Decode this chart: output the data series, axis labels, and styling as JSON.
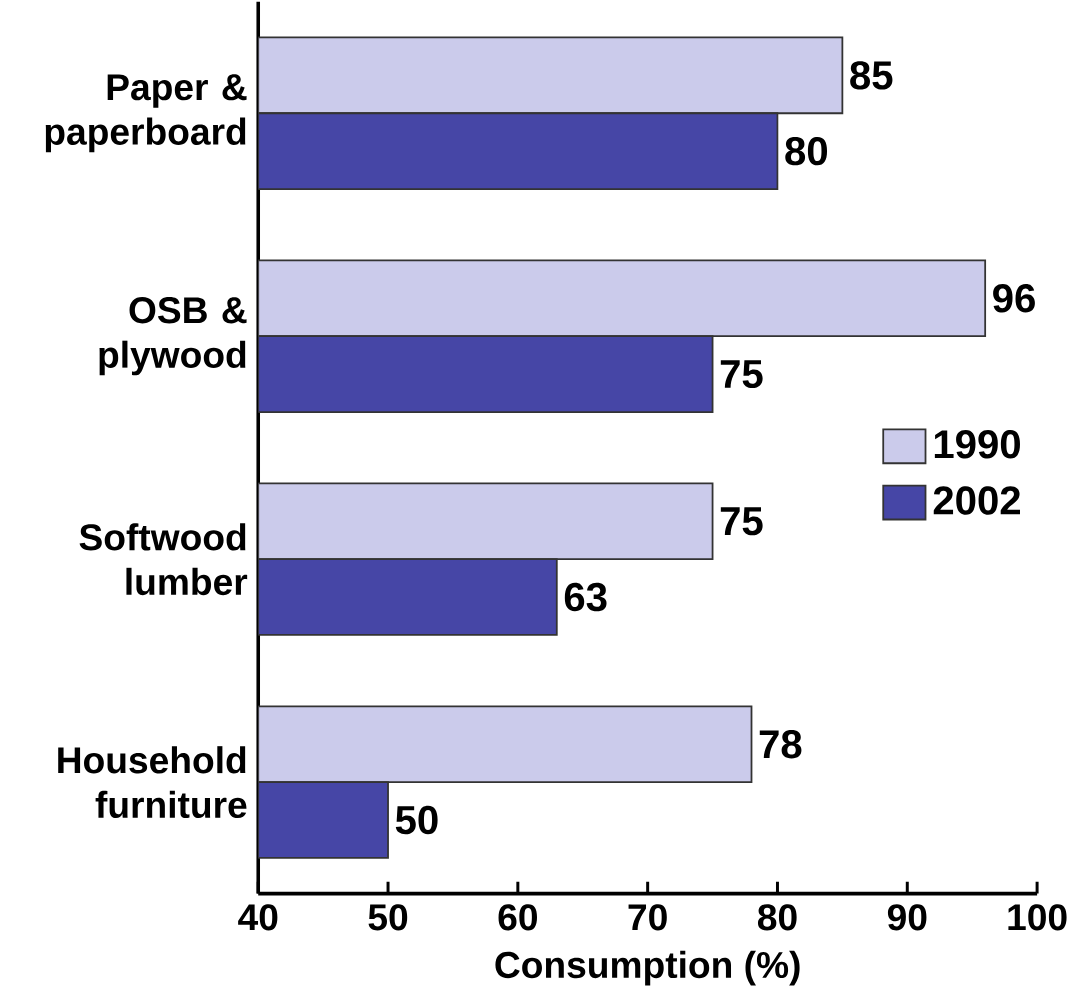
{
  "chart_data": {
    "type": "bar",
    "orientation": "horizontal",
    "xlabel": "Consumption (%)",
    "categories": [
      "Paper & paperboard",
      "OSB & plywood",
      "Softwood lumber",
      "Household furniture"
    ],
    "series": [
      {
        "name": "1990",
        "color": "#cbcbeb",
        "values": [
          85,
          96,
          75,
          78
        ]
      },
      {
        "name": "2002",
        "color": "#4646a6",
        "values": [
          80,
          75,
          63,
          50
        ]
      }
    ],
    "xlim": [
      40,
      100
    ],
    "xticks": [
      40,
      50,
      60,
      70,
      80,
      90,
      100
    ],
    "data_labels": true,
    "legend": "right",
    "grid": false
  }
}
